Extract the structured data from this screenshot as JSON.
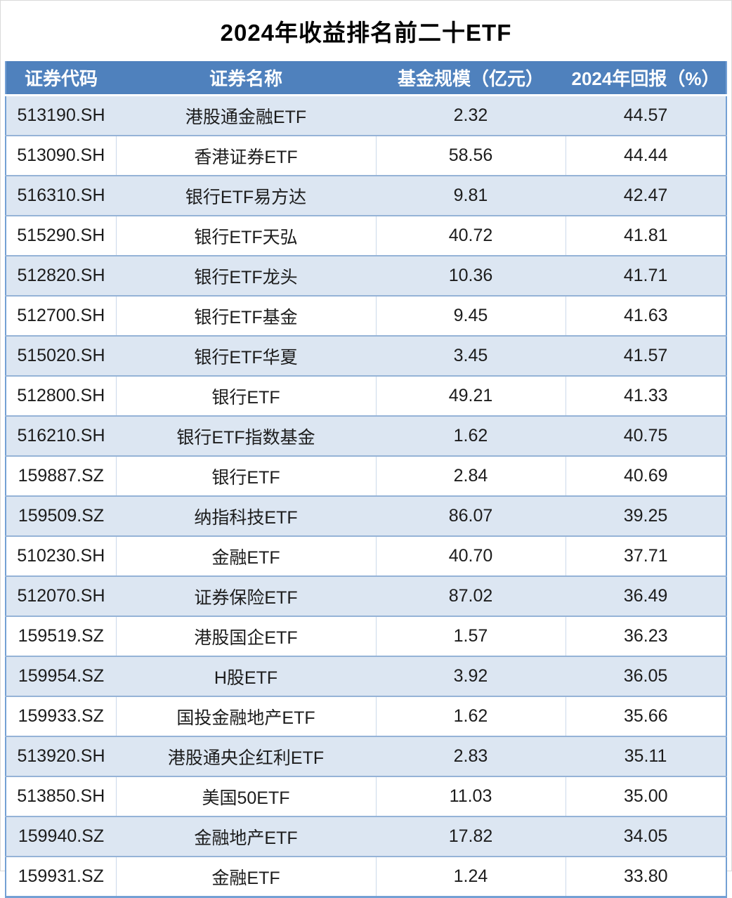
{
  "title": "2024年收益排名前二十ETF",
  "table": {
    "columns": [
      "证券代码",
      "证券名称",
      "基金规模（亿元）",
      "2024年回报（%）"
    ],
    "rows": [
      {
        "code": "513190.SH",
        "name": "港股通金融ETF",
        "size": "2.32",
        "ret": "44.57"
      },
      {
        "code": "513090.SH",
        "name": "香港证券ETF",
        "size": "58.56",
        "ret": "44.44"
      },
      {
        "code": "516310.SH",
        "name": "银行ETF易方达",
        "size": "9.81",
        "ret": "42.47"
      },
      {
        "code": "515290.SH",
        "name": "银行ETF天弘",
        "size": "40.72",
        "ret": "41.81"
      },
      {
        "code": "512820.SH",
        "name": "银行ETF龙头",
        "size": "10.36",
        "ret": "41.71"
      },
      {
        "code": "512700.SH",
        "name": "银行ETF基金",
        "size": "9.45",
        "ret": "41.63"
      },
      {
        "code": "515020.SH",
        "name": "银行ETF华夏",
        "size": "3.45",
        "ret": "41.57"
      },
      {
        "code": "512800.SH",
        "name": "银行ETF",
        "size": "49.21",
        "ret": "41.33"
      },
      {
        "code": "516210.SH",
        "name": "银行ETF指数基金",
        "size": "1.62",
        "ret": "40.75"
      },
      {
        "code": "159887.SZ",
        "name": "银行ETF",
        "size": "2.84",
        "ret": "40.69"
      },
      {
        "code": "159509.SZ",
        "name": "纳指科技ETF",
        "size": "86.07",
        "ret": "39.25"
      },
      {
        "code": "510230.SH",
        "name": "金融ETF",
        "size": "40.70",
        "ret": "37.71"
      },
      {
        "code": "512070.SH",
        "name": "证券保险ETF",
        "size": "87.02",
        "ret": "36.49"
      },
      {
        "code": "159519.SZ",
        "name": "港股国企ETF",
        "size": "1.57",
        "ret": "36.23"
      },
      {
        "code": "159954.SZ",
        "name": "H股ETF",
        "size": "3.92",
        "ret": "36.05"
      },
      {
        "code": "159933.SZ",
        "name": "国投金融地产ETF",
        "size": "1.62",
        "ret": "35.66"
      },
      {
        "code": "513920.SH",
        "name": "港股通央企红利ETF",
        "size": "2.83",
        "ret": "35.11"
      },
      {
        "code": "513850.SH",
        "name": "美国50ETF",
        "size": "11.03",
        "ret": "35.00"
      },
      {
        "code": "159940.SZ",
        "name": "金融地产ETF",
        "size": "17.82",
        "ret": "34.05"
      },
      {
        "code": "159931.SZ",
        "name": "金融ETF",
        "size": "1.24",
        "ret": "33.80"
      }
    ]
  },
  "colors": {
    "header_bg": "#4f81bd",
    "header_text": "#ffffff",
    "band_bg": "#dce6f2",
    "band_border": "#95b3d7",
    "outer_border": "#74a0d4",
    "cell_text": "#1c1c1c"
  },
  "chart_data": {
    "type": "table",
    "title": "2024年收益排名前二十ETF",
    "columns": [
      "证券代码",
      "证券名称",
      "基金规模（亿元）",
      "2024年回报（%）"
    ],
    "rows": [
      [
        "513190.SH",
        "港股通金融ETF",
        2.32,
        44.57
      ],
      [
        "513090.SH",
        "香港证券ETF",
        58.56,
        44.44
      ],
      [
        "516310.SH",
        "银行ETF易方达",
        9.81,
        42.47
      ],
      [
        "515290.SH",
        "银行ETF天弘",
        40.72,
        41.81
      ],
      [
        "512820.SH",
        "银行ETF龙头",
        10.36,
        41.71
      ],
      [
        "512700.SH",
        "银行ETF基金",
        9.45,
        41.63
      ],
      [
        "515020.SH",
        "银行ETF华夏",
        3.45,
        41.57
      ],
      [
        "512800.SH",
        "银行ETF",
        49.21,
        41.33
      ],
      [
        "516210.SH",
        "银行ETF指数基金",
        1.62,
        40.75
      ],
      [
        "159887.SZ",
        "银行ETF",
        2.84,
        40.69
      ],
      [
        "159509.SZ",
        "纳指科技ETF",
        86.07,
        39.25
      ],
      [
        "510230.SH",
        "金融ETF",
        40.7,
        37.71
      ],
      [
        "512070.SH",
        "证券保险ETF",
        87.02,
        36.49
      ],
      [
        "159519.SZ",
        "港股国企ETF",
        1.57,
        36.23
      ],
      [
        "159954.SZ",
        "H股ETF",
        3.92,
        36.05
      ],
      [
        "159933.SZ",
        "国投金融地产ETF",
        1.62,
        35.66
      ],
      [
        "513920.SH",
        "港股通央企红利ETF",
        2.83,
        35.11
      ],
      [
        "513850.SH",
        "美国50ETF",
        11.03,
        35.0
      ],
      [
        "159940.SZ",
        "金融地产ETF",
        17.82,
        34.05
      ],
      [
        "159931.SZ",
        "金融ETF",
        1.24,
        33.8
      ]
    ]
  }
}
